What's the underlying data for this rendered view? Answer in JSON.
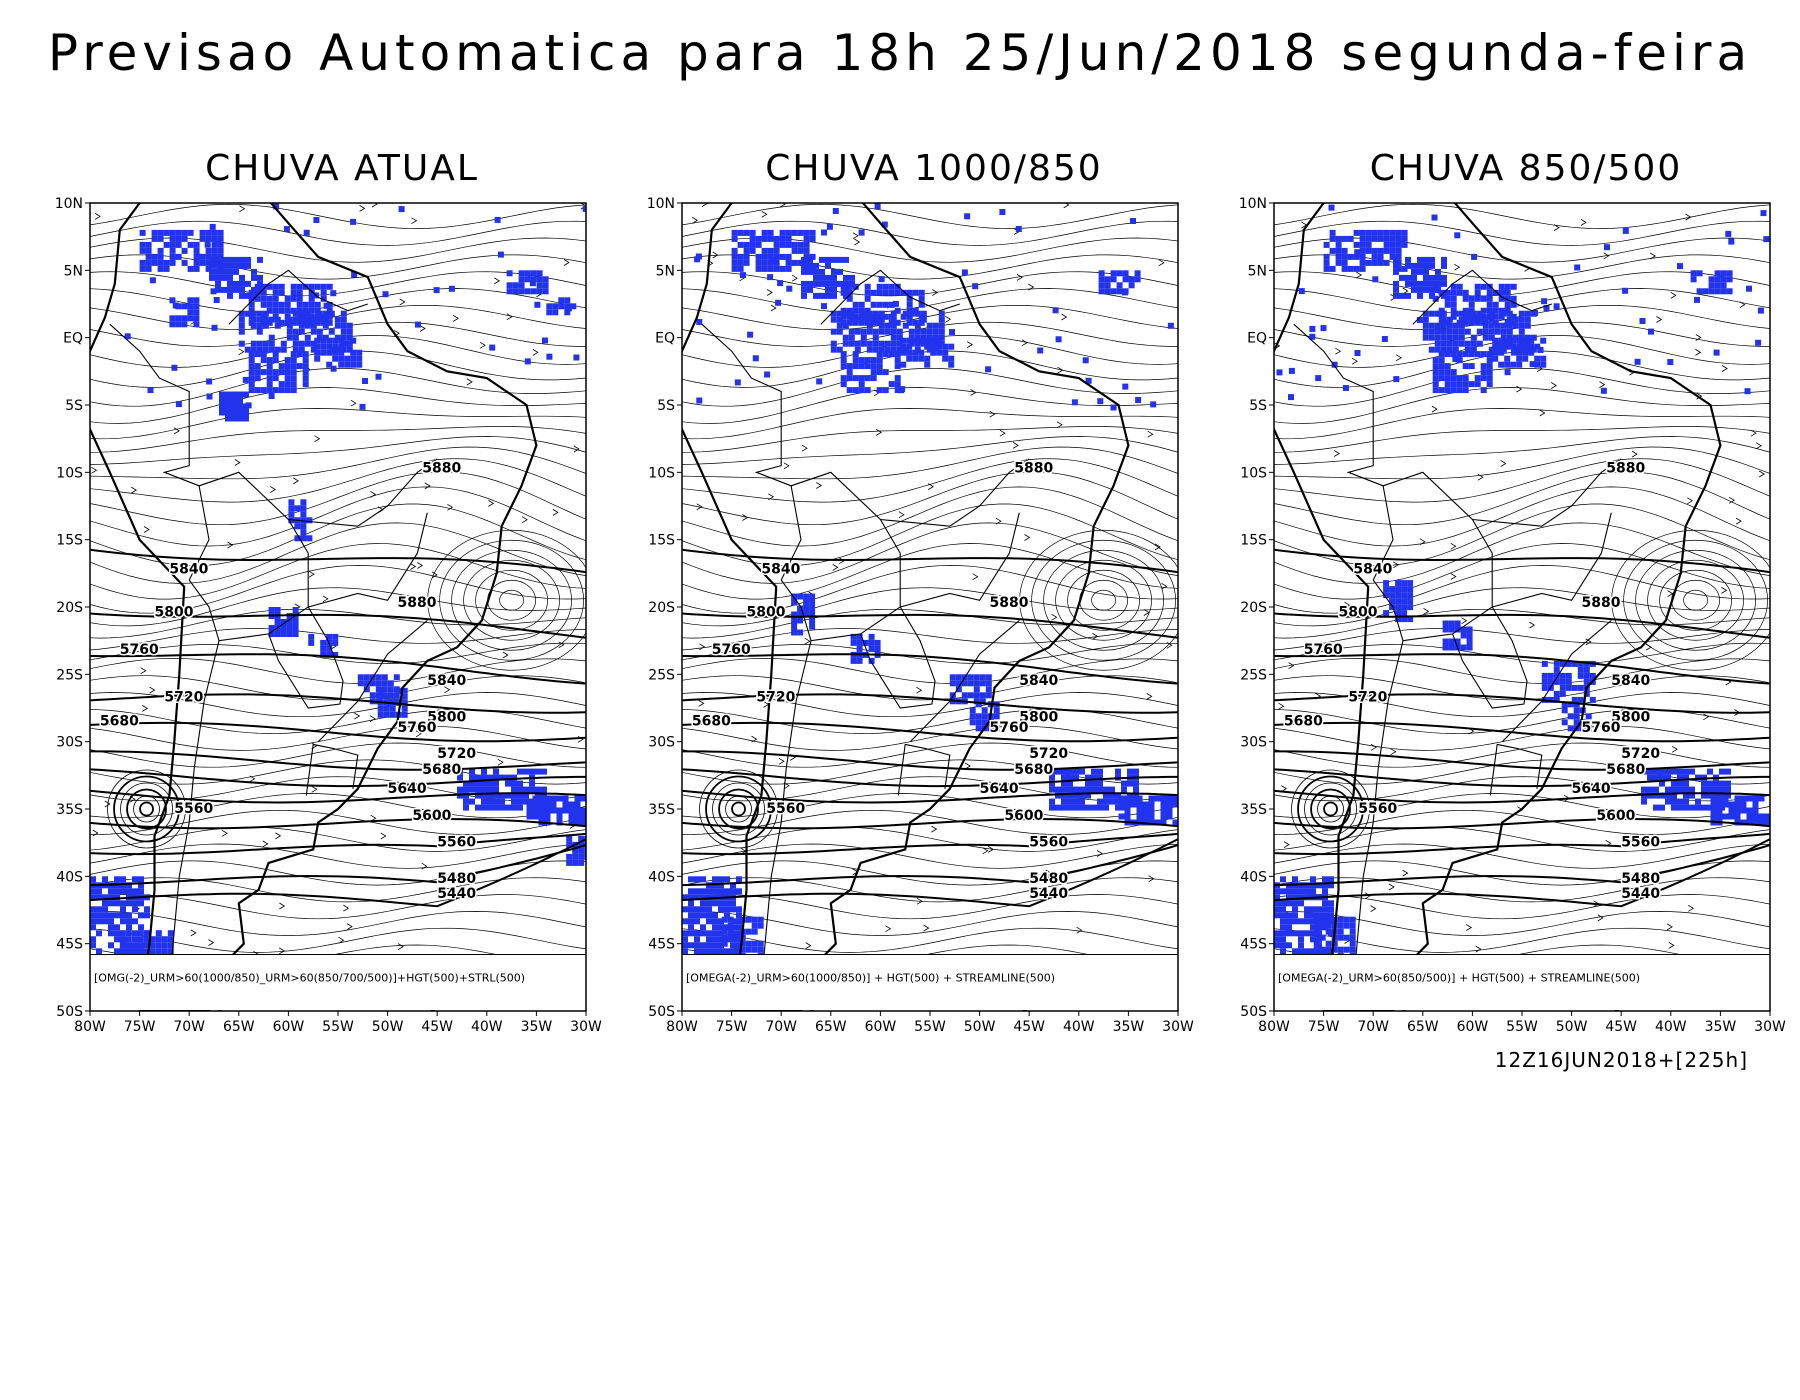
{
  "title": "Previsao Automatica para 18h 25/Jun/2018 segunda-feira",
  "run_info": "12Z16JUN2018+[225h]",
  "colors": {
    "rain": "#2233ee",
    "lines": "#000000",
    "background": "#ffffff"
  },
  "axes": {
    "lat_labels": [
      "10N",
      "5N",
      "EQ",
      "5S",
      "10S",
      "15S",
      "20S",
      "25S",
      "30S",
      "35S",
      "40S",
      "45S",
      "50S"
    ],
    "lon_labels": [
      "80W",
      "75W",
      "70W",
      "65W",
      "60W",
      "55W",
      "50W",
      "45W",
      "40W",
      "35W",
      "30W"
    ],
    "lat_range": [
      -50,
      10
    ],
    "lon_range": [
      -80,
      -30
    ]
  },
  "contour_labels": [
    {
      "text": "5880",
      "lon": -46.5,
      "lat": -10.0
    },
    {
      "text": "5880",
      "lon": -49.0,
      "lat": -20.0
    },
    {
      "text": "5840",
      "lon": -72.0,
      "lat": -17.5
    },
    {
      "text": "5800",
      "lon": -73.5,
      "lat": -20.7
    },
    {
      "text": "5760",
      "lon": -77.0,
      "lat": -23.5
    },
    {
      "text": "5720",
      "lon": -72.5,
      "lat": -27.0
    },
    {
      "text": "5680",
      "lon": -79.0,
      "lat": -28.8
    },
    {
      "text": "5560",
      "lon": -71.5,
      "lat": -35.3
    },
    {
      "text": "5840",
      "lon": -46.0,
      "lat": -25.8
    },
    {
      "text": "5800",
      "lon": -46.0,
      "lat": -28.5
    },
    {
      "text": "5760",
      "lon": -49.0,
      "lat": -29.3
    },
    {
      "text": "5720",
      "lon": -45.0,
      "lat": -31.2
    },
    {
      "text": "5680",
      "lon": -46.5,
      "lat": -32.4
    },
    {
      "text": "5640",
      "lon": -50.0,
      "lat": -33.8
    },
    {
      "text": "5600",
      "lon": -47.5,
      "lat": -35.8
    },
    {
      "text": "5560",
      "lon": -45.0,
      "lat": -37.8
    },
    {
      "text": "5480",
      "lon": -45.0,
      "lat": -40.5
    },
    {
      "text": "5440",
      "lon": -45.0,
      "lat": -41.6
    }
  ],
  "panels": [
    {
      "title": "CHUVA ATUAL",
      "legend": "[OMG(-2)_URM>60(1000/850)_URM>60(850/700/500)]+HGT(500)+STRL(500)",
      "rain_areas": [
        {
          "lon": -75,
          "lat": 8,
          "w": 8,
          "h": 3
        },
        {
          "lon": -68,
          "lat": 6,
          "w": 5,
          "h": 3
        },
        {
          "lon": -64,
          "lat": 4,
          "w": 8,
          "h": 3
        },
        {
          "lon": -72,
          "lat": 3,
          "w": 3,
          "h": 2
        },
        {
          "lon": -65,
          "lat": 2,
          "w": 11,
          "h": 3
        },
        {
          "lon": -64,
          "lat": -1,
          "w": 6,
          "h": 3
        },
        {
          "lon": -58,
          "lat": 0,
          "w": 5,
          "h": 2
        },
        {
          "lon": -67,
          "lat": -4,
          "w": 3,
          "h": 2
        },
        {
          "lon": -38,
          "lat": 5,
          "w": 4,
          "h": 1.5
        },
        {
          "lon": -34,
          "lat": 3,
          "w": 3,
          "h": 1
        },
        {
          "lon": -60,
          "lat": -12,
          "w": 2,
          "h": 3
        },
        {
          "lon": -62,
          "lat": -20,
          "w": 3,
          "h": 2
        },
        {
          "lon": -58,
          "lat": -22,
          "w": 3,
          "h": 1.5
        },
        {
          "lon": -53,
          "lat": -25,
          "w": 4,
          "h": 2
        },
        {
          "lon": -51,
          "lat": -26,
          "w": 3,
          "h": 2
        },
        {
          "lon": -43,
          "lat": -32,
          "w": 9,
          "h": 3
        },
        {
          "lon": -36,
          "lat": -34,
          "w": 6,
          "h": 2
        },
        {
          "lon": -32,
          "lat": -37,
          "w": 3,
          "h": 2
        },
        {
          "lon": -80,
          "lat": -40,
          "w": 6,
          "h": 6
        },
        {
          "lon": -77,
          "lat": -44,
          "w": 5,
          "h": 4
        }
      ]
    },
    {
      "title": "CHUVA 1000/850",
      "legend": "[OMEGA(-2)_URM>60(1000/850)] + HGT(500) + STREAMLINE(500)",
      "rain_areas": [
        {
          "lon": -75,
          "lat": 8,
          "w": 8,
          "h": 3
        },
        {
          "lon": -68,
          "lat": 6,
          "w": 5,
          "h": 3
        },
        {
          "lon": -64,
          "lat": 4,
          "w": 8,
          "h": 3
        },
        {
          "lon": -65,
          "lat": 2,
          "w": 11,
          "h": 3
        },
        {
          "lon": -64,
          "lat": -1,
          "w": 6,
          "h": 3
        },
        {
          "lon": -58,
          "lat": 0,
          "w": 5,
          "h": 2
        },
        {
          "lon": -38,
          "lat": 5,
          "w": 4,
          "h": 1.5
        },
        {
          "lon": -69,
          "lat": -19,
          "w": 2,
          "h": 3
        },
        {
          "lon": -63,
          "lat": -22,
          "w": 3,
          "h": 2
        },
        {
          "lon": -53,
          "lat": -25,
          "w": 4,
          "h": 2
        },
        {
          "lon": -51,
          "lat": -27,
          "w": 3,
          "h": 2
        },
        {
          "lon": -43,
          "lat": -32,
          "w": 9,
          "h": 3
        },
        {
          "lon": -36,
          "lat": -34,
          "w": 6,
          "h": 2
        },
        {
          "lon": -80,
          "lat": -40,
          "w": 6,
          "h": 6
        },
        {
          "lon": -76,
          "lat": -43,
          "w": 4,
          "h": 4
        }
      ]
    },
    {
      "title": "CHUVA 850/500",
      "legend": "[OMEGA(-2)_URM>60(850/500)] + HGT(500) + STREAMLINE(500)",
      "rain_areas": [
        {
          "lon": -75,
          "lat": 8,
          "w": 8,
          "h": 3
        },
        {
          "lon": -68,
          "lat": 6,
          "w": 5,
          "h": 3
        },
        {
          "lon": -64,
          "lat": 4,
          "w": 8,
          "h": 3
        },
        {
          "lon": -65,
          "lat": 2,
          "w": 11,
          "h": 3
        },
        {
          "lon": -64,
          "lat": -1,
          "w": 6,
          "h": 3
        },
        {
          "lon": -58,
          "lat": 0,
          "w": 5,
          "h": 2
        },
        {
          "lon": -38,
          "lat": 5,
          "w": 4,
          "h": 1.5
        },
        {
          "lon": -69,
          "lat": -18,
          "w": 3,
          "h": 3
        },
        {
          "lon": -63,
          "lat": -21,
          "w": 3,
          "h": 2
        },
        {
          "lon": -53,
          "lat": -24,
          "w": 5,
          "h": 3
        },
        {
          "lon": -51,
          "lat": -27,
          "w": 3,
          "h": 2
        },
        {
          "lon": -43,
          "lat": -32,
          "w": 9,
          "h": 3
        },
        {
          "lon": -36,
          "lat": -34,
          "w": 6,
          "h": 2
        },
        {
          "lon": -80,
          "lat": -40,
          "w": 6,
          "h": 6
        },
        {
          "lon": -76,
          "lat": -43,
          "w": 4,
          "h": 4
        }
      ]
    }
  ]
}
